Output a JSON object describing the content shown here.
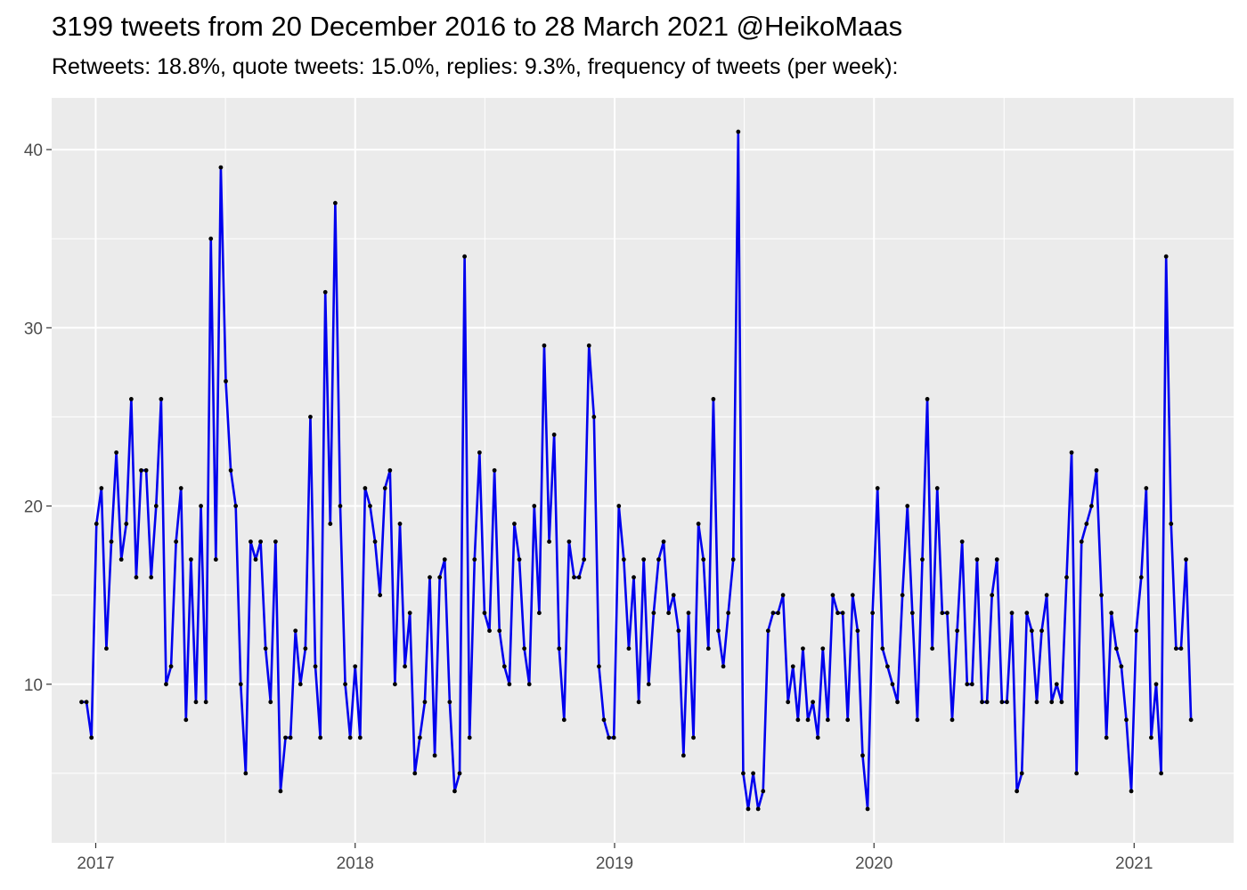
{
  "chart_data": {
    "type": "line",
    "title": "3199 tweets from 20 December 2016 to 28 March 2021 @HeikoMaas",
    "subtitle": "Retweets: 18.8%, quote tweets: 15.0%, replies: 9.3%, frequency of tweets (per week):",
    "xlabel": "",
    "ylabel": "",
    "xlim": [
      "2016-10-31",
      "2021-05-21"
    ],
    "ylim": [
      1.1,
      42.9
    ],
    "x_ticks": [
      "2017-01-01",
      "2018-01-01",
      "2019-01-01",
      "2020-01-01",
      "2021-01-01"
    ],
    "x_tick_labels": [
      "2017",
      "2018",
      "2019",
      "2020",
      "2021"
    ],
    "y_ticks": [
      10,
      20,
      30,
      40
    ],
    "y_tick_labels": [
      "10",
      "20",
      "30",
      "40"
    ],
    "grid": true,
    "legend": "none",
    "colors": {
      "line": "#0000ee",
      "point": "#000000",
      "panel": "#ebebeb",
      "grid": "#ffffff"
    },
    "series": [
      {
        "start_date": "2016-12-12",
        "interval": "week",
        "values": [
          9,
          9,
          7,
          19,
          21,
          12,
          18,
          23,
          17,
          19,
          26,
          16,
          22,
          22,
          16,
          20,
          26,
          10,
          11,
          18,
          21,
          8,
          17,
          9,
          20,
          9,
          35,
          17,
          39,
          27,
          22,
          20,
          10,
          5,
          18,
          17,
          18,
          12,
          9,
          18,
          4,
          7,
          7,
          13,
          10,
          12,
          25,
          11,
          7,
          32,
          19,
          37,
          20,
          10,
          7,
          11,
          7,
          21,
          20,
          18,
          15,
          21,
          22,
          10,
          19,
          11,
          14,
          5,
          7,
          9,
          16,
          6,
          16,
          17,
          9,
          4,
          5,
          34,
          7,
          17,
          23,
          14,
          13,
          22,
          13,
          11,
          10,
          19,
          17,
          12,
          10,
          20,
          14,
          29,
          18,
          24,
          12,
          8,
          18,
          16,
          16,
          17,
          29,
          25,
          11,
          8,
          7,
          7,
          20,
          17,
          12,
          16,
          9,
          17,
          10,
          14,
          17,
          18,
          14,
          15,
          13,
          6,
          14,
          7,
          19,
          17,
          12,
          26,
          13,
          11,
          14,
          17,
          41,
          5,
          3,
          5,
          3,
          4,
          13,
          14,
          14,
          15,
          9,
          11,
          8,
          12,
          8,
          9,
          7,
          12,
          8,
          15,
          14,
          14,
          8,
          15,
          13,
          6,
          3,
          14,
          21,
          12,
          11,
          10,
          9,
          15,
          20,
          14,
          8,
          17,
          26,
          12,
          21,
          14,
          14,
          8,
          13,
          18,
          10,
          10,
          17,
          9,
          9,
          15,
          17,
          9,
          9,
          14,
          4,
          5,
          14,
          13,
          9,
          13,
          15,
          9,
          10,
          9,
          16,
          23,
          5,
          18,
          19,
          20,
          22,
          15,
          7,
          14,
          12,
          11,
          8,
          4,
          13,
          16,
          21,
          7,
          10,
          5,
          34,
          19,
          12,
          12,
          17,
          8
        ]
      }
    ]
  }
}
